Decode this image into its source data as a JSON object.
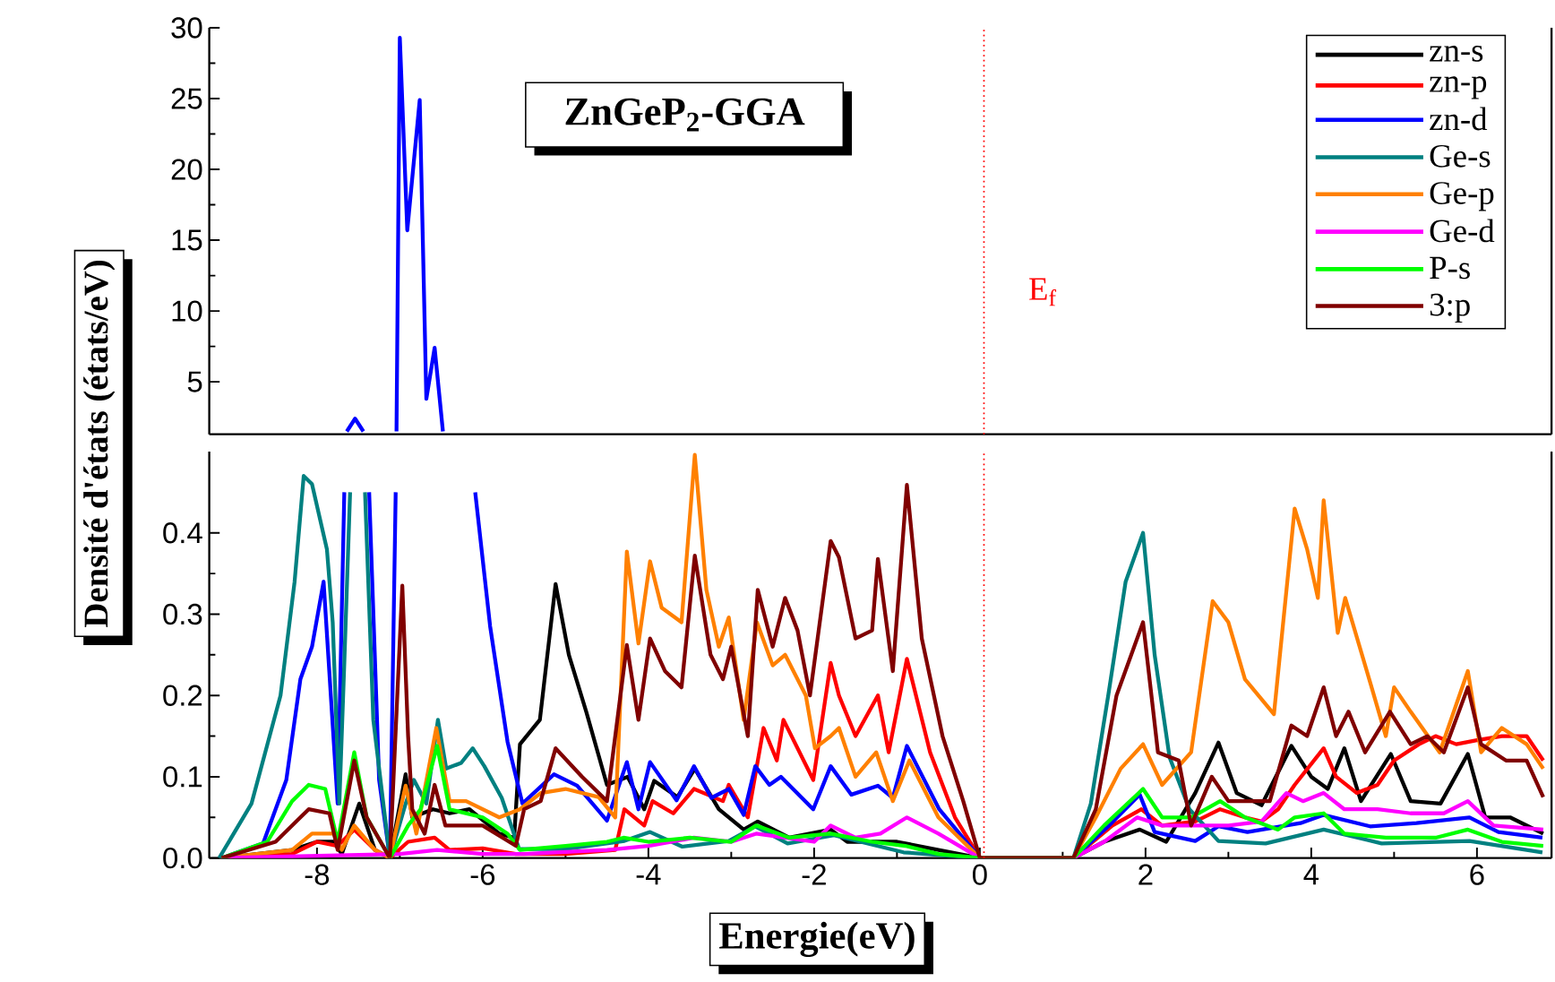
{
  "chart_data": [
    {
      "type": "line",
      "title": "ZnGeP$_{2}$-GGA",
      "xlim": [
        -9.3,
        6.9
      ],
      "ylim": [
        1.3,
        30
      ],
      "yticks": [
        5,
        10,
        15,
        20,
        25,
        30
      ],
      "tick_labels": "y",
      "ref_lines": [
        {
          "axis": "x",
          "value": 0.05,
          "label": "E$_{f}$",
          "color": "#ff0000",
          "line_style": "dotted"
        }
      ],
      "series": [
        {
          "color": "#0000ff",
          "x": [
            -7.64,
            -7.54,
            -7.44,
            -7.2,
            -7.04,
            -7.0,
            -6.91,
            -6.76,
            -6.68,
            -6.58,
            -6.48
          ],
          "values": [
            1.5,
            2.4,
            1.5,
            null,
            1.5,
            29.3,
            15.7,
            24.9,
            3.8,
            7.4,
            1.5
          ]
        }
      ]
    },
    {
      "type": "line",
      "xlabel": "Energie(eV)",
      "ylabel": "Densité d'états (états/eV)",
      "xlim": [
        -9.3,
        6.9
      ],
      "ylim": [
        0,
        0.5
      ],
      "xticks": [
        -8,
        -6,
        -4,
        -2,
        0,
        2,
        4,
        6
      ],
      "yticks": [
        {
          "value": 0,
          "label": "0.0"
        },
        0.1,
        0.2,
        0.3,
        0.4
      ],
      "legend": "top right",
      "ref_lines": [
        {
          "axis": "x",
          "value": 0.05,
          "color": "#ff0000",
          "line_style": "dotted"
        }
      ],
      "series": [
        {
          "name": "zn-s",
          "color": "#000000",
          "x": [
            -9.15,
            -8.3,
            -8.0,
            -7.8,
            -7.7,
            -7.49,
            -7.3,
            -7.12,
            -6.93,
            -6.85,
            -6.6,
            -6.4,
            -6.16,
            -5.8,
            -5.62,
            -5.55,
            -5.31,
            -5.12,
            -4.96,
            -4.75,
            -4.5,
            -4.25,
            -4.05,
            -3.93,
            -3.65,
            -3.44,
            -3.15,
            -2.85,
            -2.68,
            -2.3,
            -1.8,
            -1.6,
            -1.0,
            -0.5,
            0,
            1.13,
            1.5,
            1.93,
            2.25,
            2.6,
            2.88,
            3.1,
            3.4,
            3.76,
            4.0,
            4.2,
            4.4,
            4.6,
            4.96,
            5.2,
            5.56,
            5.89,
            6.1,
            6.4,
            6.8
          ],
          "values": [
            0,
            0.01,
            0.02,
            0.02,
            0.005,
            0.067,
            0.01,
            0,
            0.103,
            0.05,
            0.06,
            0.055,
            0.06,
            0.03,
            0.025,
            0.14,
            0.17,
            0.337,
            0.25,
            0.18,
            0.09,
            0.1,
            0.06,
            0.095,
            0.075,
            0.11,
            0.06,
            0.035,
            0.045,
            0.025,
            0.035,
            0.02,
            0.02,
            0.01,
            0,
            0,
            0.02,
            0.035,
            0.02,
            0.08,
            0.142,
            0.08,
            0.065,
            0.138,
            0.1,
            0.085,
            0.135,
            0.07,
            0.128,
            0.07,
            0.067,
            0.128,
            0.05,
            0.05,
            0.03
          ]
        },
        {
          "name": "zn-p",
          "color": "#ff0000",
          "x": [
            -9.15,
            -8.3,
            -8.0,
            -7.75,
            -7.55,
            -7.3,
            -7.12,
            -6.9,
            -6.58,
            -6.4,
            -6.0,
            -5.6,
            -5.0,
            -4.4,
            -4.29,
            -4.05,
            -3.95,
            -3.7,
            -3.45,
            -3.1,
            -3.03,
            -2.8,
            -2.61,
            -2.45,
            -2.37,
            -2.01,
            -1.8,
            -1.7,
            -1.5,
            -1.23,
            -1.1,
            -0.88,
            -0.6,
            -0.3,
            0,
            1.13,
            1.6,
            1.95,
            2.2,
            2.6,
            2.9,
            3.2,
            3.4,
            3.6,
            3.8,
            4.15,
            4.3,
            4.55,
            4.8,
            5.0,
            5.3,
            5.5,
            5.75,
            6.0,
            6.3,
            6.6,
            6.8
          ],
          "values": [
            0,
            0.005,
            0.02,
            0.015,
            0.035,
            0.01,
            0,
            0.02,
            0.025,
            0.01,
            0.012,
            0.005,
            0.005,
            0.01,
            0.06,
            0.04,
            0.07,
            0.055,
            0.085,
            0.07,
            0.09,
            0.05,
            0.16,
            0.12,
            0.17,
            0.096,
            0.24,
            0.2,
            0.15,
            0.2,
            0.13,
            0.245,
            0.13,
            0.05,
            0,
            0,
            0.04,
            0.06,
            0.04,
            0.045,
            0.06,
            0.05,
            0.045,
            0.06,
            0.09,
            0.135,
            0.1,
            0.08,
            0.09,
            0.12,
            0.14,
            0.15,
            0.14,
            0.145,
            0.15,
            0.15,
            0.12
          ]
        },
        {
          "name": "zn-d",
          "color": "#0000ff",
          "x": [
            -9.15,
            -8.65,
            -8.37,
            -8.2,
            -8.06,
            -7.92,
            -7.75,
            -7.67,
            -7.52,
            -7.37,
            -7.25,
            -7.12,
            -7.05,
            -6.5,
            -6.09,
            -5.91,
            -5.7,
            -5.52,
            -5.14,
            -4.86,
            -4.5,
            -4.26,
            -4.12,
            -3.98,
            -3.66,
            -3.45,
            -3.24,
            -3.03,
            -2.85,
            -2.71,
            -2.54,
            -2.4,
            -2.01,
            -1.8,
            -1.55,
            -1.23,
            -1.05,
            -0.88,
            -0.49,
            0,
            1.13,
            1.55,
            1.93,
            2.11,
            2.6,
            2.88,
            3.23,
            3.87,
            4.15,
            4.71,
            5.27,
            5.91,
            6.26,
            6.79
          ],
          "values": [
            0,
            0.018,
            0.096,
            0.22,
            0.26,
            0.34,
            0.067,
            0.45,
            null,
            0.45,
            0.096,
            0,
            0.45,
            null,
            0.45,
            0.285,
            0.143,
            0.067,
            0.103,
            0.089,
            0.046,
            0.118,
            0.06,
            0.118,
            0.071,
            0.113,
            0.074,
            0.085,
            0.053,
            0.113,
            0.09,
            0.1,
            0.06,
            0.113,
            0.078,
            0.089,
            0.074,
            0.138,
            0.06,
            0,
            0,
            0.039,
            0.078,
            0.032,
            0.021,
            0.039,
            0.032,
            0.043,
            0.053,
            0.039,
            0.043,
            0.05,
            0.032,
            0.025
          ]
        },
        {
          "name": "Ge-s",
          "color": "#008080",
          "x": [
            -9.18,
            -8.79,
            -8.44,
            -8.27,
            -8.16,
            -8.06,
            -7.88,
            -7.81,
            -7.73,
            -7.67,
            -7.6,
            -7.51,
            -7.42,
            -7.32,
            -7.12,
            -6.93,
            -6.83,
            -6.68,
            -6.54,
            -6.44,
            -6.26,
            -6.12,
            -5.98,
            -5.77,
            -5.56,
            -5.0,
            -4.29,
            -3.98,
            -3.59,
            -3.03,
            -2.71,
            -2.32,
            -1.76,
            -0.92,
            0,
            1.13,
            1.34,
            1.55,
            1.76,
            1.97,
            2.11,
            2.29,
            2.53,
            2.88,
            3.45,
            4.15,
            4.85,
            5.91,
            6.79
          ],
          "values": [
            0,
            0.067,
            0.2,
            0.34,
            0.47,
            0.46,
            0.38,
            0.29,
            0.067,
            0.24,
            0.45,
            null,
            0.45,
            0.17,
            0,
            0.067,
            0.096,
            0.067,
            0.17,
            0.11,
            0.117,
            0.135,
            0.113,
            0.074,
            0.011,
            0.011,
            0.021,
            0.032,
            0.014,
            0.021,
            0.039,
            0.018,
            0.028,
            0.007,
            0,
            0,
            0.067,
            0.2,
            0.34,
            0.4,
            0.25,
            0.124,
            0.06,
            0.021,
            0.018,
            0.035,
            0.018,
            0.021,
            0.007
          ]
        },
        {
          "name": "Ge-p",
          "color": "#ff8000",
          "x": [
            -9.15,
            -8.3,
            -8.06,
            -7.8,
            -7.7,
            -7.55,
            -7.3,
            -7.12,
            -6.93,
            -6.8,
            -6.56,
            -6.4,
            -6.2,
            -5.8,
            -5.55,
            -5.3,
            -5.0,
            -4.6,
            -4.4,
            -4.26,
            -4.12,
            -3.98,
            -3.84,
            -3.6,
            -3.44,
            -3.3,
            -3.15,
            -3.03,
            -2.85,
            -2.69,
            -2.5,
            -2.35,
            -2.1,
            -1.99,
            -1.8,
            -1.7,
            -1.5,
            -1.25,
            -1.05,
            -0.85,
            -0.5,
            0,
            1.13,
            1.4,
            1.7,
            1.97,
            2.2,
            2.55,
            2.81,
            3.0,
            3.2,
            3.55,
            3.8,
            3.95,
            4.08,
            4.15,
            4.32,
            4.41,
            4.7,
            4.9,
            5.0,
            5.2,
            5.55,
            5.89,
            6.05,
            6.3,
            6.6,
            6.8
          ],
          "values": [
            0,
            0.01,
            0.03,
            0.03,
            0.01,
            0.04,
            0.01,
            0,
            0.089,
            0.03,
            0.16,
            0.07,
            0.07,
            0.05,
            0.06,
            0.08,
            0.085,
            0.075,
            0.05,
            0.377,
            0.264,
            0.365,
            0.308,
            0.29,
            0.496,
            0.33,
            0.26,
            0.296,
            0.17,
            0.29,
            0.237,
            0.25,
            0.2,
            0.135,
            0.15,
            0.16,
            0.1,
            0.13,
            0.07,
            0.12,
            0.05,
            0,
            0,
            0.05,
            0.11,
            0.14,
            0.09,
            0.13,
            0.316,
            0.29,
            0.22,
            0.177,
            0.43,
            0.38,
            0.32,
            0.44,
            0.277,
            0.32,
            0.22,
            0.15,
            0.21,
            0.18,
            0.13,
            0.23,
            0.13,
            0.16,
            0.14,
            0.11
          ]
        },
        {
          "name": "Ge-d",
          "color": "#ff00ff",
          "x": [
            -9.15,
            -7,
            -6.55,
            -6,
            -5.5,
            -4.5,
            -4.0,
            -3.45,
            -3.0,
            -2.7,
            -2.0,
            -1.8,
            -1.5,
            -1.2,
            -0.88,
            -0.5,
            0,
            1.13,
            1.5,
            1.9,
            2.2,
            2.6,
            3.0,
            3.4,
            3.7,
            3.9,
            4.15,
            4.4,
            4.8,
            5.2,
            5.6,
            5.89,
            6.2,
            6.8
          ],
          "values": [
            0,
            0.005,
            0.01,
            0.005,
            0.005,
            0.01,
            0.015,
            0.025,
            0.02,
            0.03,
            0.02,
            0.04,
            0.025,
            0.03,
            0.05,
            0.03,
            0,
            0,
            0.02,
            0.05,
            0.04,
            0.04,
            0.04,
            0.045,
            0.08,
            0.07,
            0.08,
            0.06,
            0.06,
            0.055,
            0.055,
            0.07,
            0.04,
            0.035
          ]
        },
        {
          "name": "P-s",
          "color": "#00ff00",
          "x": [
            -9.15,
            -8.6,
            -8.3,
            -8.1,
            -7.9,
            -7.75,
            -7.55,
            -7.4,
            -7.12,
            -6.9,
            -6.75,
            -6.55,
            -6.4,
            -6.0,
            -5.7,
            -5.55,
            -5.0,
            -4.5,
            -4.3,
            -4.0,
            -3.5,
            -3.0,
            -2.7,
            -2.3,
            -1.8,
            -1.3,
            -0.9,
            -0.5,
            0,
            1.13,
            1.5,
            1.97,
            2.2,
            2.55,
            2.9,
            3.2,
            3.6,
            3.8,
            4.15,
            4.4,
            4.9,
            5.5,
            5.89,
            6.3,
            6.8
          ],
          "values": [
            0,
            0.02,
            0.07,
            0.09,
            0.085,
            0.02,
            0.13,
            0.05,
            0,
            0.04,
            0.06,
            0.138,
            0.06,
            0.05,
            0.03,
            0.01,
            0.015,
            0.02,
            0.025,
            0.02,
            0.025,
            0.02,
            0.04,
            0.025,
            0.03,
            0.02,
            0.015,
            0.005,
            0,
            0,
            0.04,
            0.085,
            0.05,
            0.05,
            0.07,
            0.05,
            0.035,
            0.05,
            0.055,
            0.03,
            0.025,
            0.025,
            0.035,
            0.02,
            0.015
          ]
        },
        {
          "name": "3:p",
          "color": "#800000",
          "x": [
            -9.15,
            -8.5,
            -8.2,
            -8.1,
            -7.85,
            -7.75,
            -7.55,
            -7.4,
            -7.12,
            -6.97,
            -6.9,
            -6.85,
            -6.7,
            -6.58,
            -6.45,
            -6.0,
            -5.6,
            -5.5,
            -5.3,
            -5.12,
            -4.8,
            -4.5,
            -4.26,
            -4.12,
            -3.98,
            -3.8,
            -3.6,
            -3.44,
            -3.25,
            -3.1,
            -3.0,
            -2.8,
            -2.68,
            -2.5,
            -2.35,
            -2.2,
            -2.05,
            -1.8,
            -1.7,
            -1.5,
            -1.3,
            -1.23,
            -1.05,
            -0.88,
            -0.7,
            -0.45,
            -0.2,
            0,
            1.13,
            1.4,
            1.65,
            1.97,
            2.15,
            2.4,
            2.55,
            2.8,
            3.0,
            3.5,
            3.76,
            3.95,
            4.15,
            4.3,
            4.45,
            4.65,
            4.95,
            5.2,
            5.4,
            5.6,
            5.89,
            6.05,
            6.35,
            6.6,
            6.8
          ],
          "values": [
            0,
            0.02,
            0.05,
            0.06,
            0.055,
            0.01,
            0.12,
            0.05,
            0,
            0.335,
            0.15,
            0.06,
            0.03,
            0.09,
            0.04,
            0.04,
            0.015,
            0.06,
            0.07,
            0.135,
            0.1,
            0.07,
            0.262,
            0.17,
            0.27,
            0.23,
            0.21,
            0.372,
            0.25,
            0.22,
            0.26,
            0.15,
            0.33,
            0.26,
            0.32,
            0.28,
            0.2,
            0.39,
            0.37,
            0.27,
            0.28,
            0.368,
            0.23,
            0.459,
            0.27,
            0.15,
            0.07,
            0,
            0,
            0.06,
            0.2,
            0.29,
            0.13,
            0.12,
            0.04,
            0.1,
            0.07,
            0.07,
            0.163,
            0.15,
            0.21,
            0.15,
            0.18,
            0.13,
            0.18,
            0.14,
            0.15,
            0.13,
            0.21,
            0.14,
            0.12,
            0.12,
            0.075
          ]
        }
      ]
    }
  ]
}
